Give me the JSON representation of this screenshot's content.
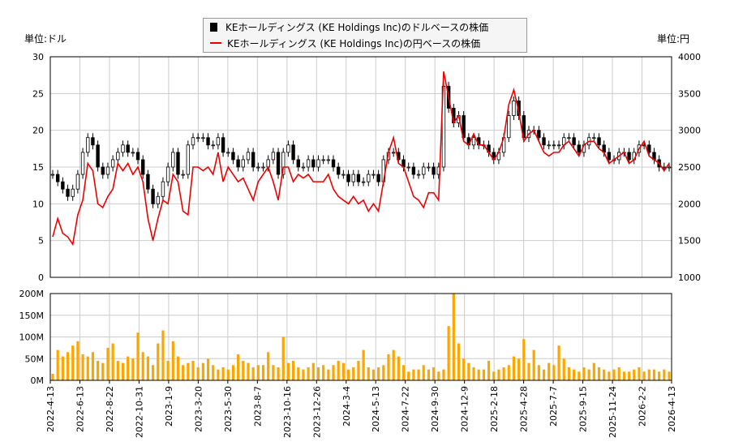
{
  "legend": {
    "usd_label": "KEホールディングス (KE Holdings Inc)のドルベースの株価",
    "jpy_label": "KEホールディングス (KE Holdings Inc)の円ベースの株価"
  },
  "units": {
    "left": "単位:ドル",
    "right": "単位:円"
  },
  "colors": {
    "usd_candle": "#000000",
    "jpy_line": "#ee0000",
    "volume": "#ffa500",
    "grid": "#cccccc"
  },
  "chart_data": [
    {
      "type": "candlestick+line",
      "frequency": "weekly",
      "period": [
        "2022-4-13",
        "2026-4-13"
      ],
      "left_axis": {
        "label": "単位:ドル",
        "ylim": [
          0,
          30
        ],
        "ticks": [
          "0",
          "5",
          "10",
          "15",
          "20",
          "25",
          "30"
        ]
      },
      "right_axis": {
        "label": "単位:円",
        "ylim": [
          1000,
          4000
        ],
        "ticks": [
          "1000",
          "1500",
          "2000",
          "2500",
          "3000",
          "3500",
          "4000"
        ]
      },
      "grid": true,
      "legend_placement": "top-center",
      "series": [
        {
          "name": "KEホールディングス (KE Holdings Inc)のドルベースの株価",
          "axis": "left",
          "close": [
            14,
            13,
            12,
            11,
            12,
            14,
            17,
            19,
            18,
            15,
            14,
            15,
            16,
            17,
            18,
            17,
            17,
            16,
            14,
            12,
            10,
            11,
            13,
            15,
            17,
            14,
            14,
            18,
            19,
            19,
            19,
            18,
            18,
            19,
            17,
            17,
            16,
            15,
            16,
            17,
            15,
            15,
            15,
            16,
            17,
            14,
            17,
            18,
            16,
            15,
            15,
            16,
            15,
            16,
            16,
            16,
            15,
            14,
            14,
            13,
            14,
            13,
            13,
            14,
            14,
            13,
            16,
            17,
            17,
            16,
            15,
            15,
            14,
            14,
            15,
            15,
            14,
            15,
            26,
            23,
            21,
            22,
            19,
            18,
            19,
            18,
            18,
            17,
            16,
            17,
            19,
            22,
            24,
            22,
            19,
            20,
            20,
            19,
            18,
            18,
            18,
            18,
            19,
            19,
            18,
            17,
            18,
            19,
            19,
            18,
            17,
            16,
            16,
            17,
            17,
            16,
            17,
            18,
            18,
            17,
            16,
            15,
            15,
            15
          ]
        },
        {
          "name": "KEホールディングス (KE Holdings Inc)の円ベースの株価",
          "axis": "right",
          "close": [
            1550,
            1800,
            1600,
            1550,
            1450,
            1850,
            2050,
            2550,
            2450,
            2000,
            1950,
            2100,
            2200,
            2550,
            2450,
            2550,
            2400,
            2500,
            2300,
            1800,
            1500,
            1800,
            2050,
            2000,
            2400,
            2300,
            1900,
            1850,
            2500,
            2500,
            2450,
            2500,
            2400,
            2700,
            2300,
            2500,
            2400,
            2300,
            2350,
            2200,
            2050,
            2300,
            2400,
            2500,
            2300,
            2050,
            2500,
            2500,
            2300,
            2400,
            2350,
            2400,
            2300,
            2300,
            2300,
            2400,
            2200,
            2100,
            2050,
            2000,
            2100,
            2000,
            2050,
            1900,
            2000,
            1900,
            2300,
            2700,
            2900,
            2550,
            2500,
            2300,
            2100,
            2050,
            1950,
            2150,
            2150,
            2050,
            3800,
            3450,
            3100,
            3200,
            2850,
            2800,
            2950,
            2800,
            2800,
            2700,
            2600,
            2700,
            2900,
            3350,
            3550,
            3250,
            2850,
            2950,
            3000,
            2850,
            2700,
            2650,
            2700,
            2700,
            2800,
            2850,
            2750,
            2650,
            2800,
            2850,
            2850,
            2750,
            2700,
            2550,
            2600,
            2650,
            2700,
            2550,
            2600,
            2750,
            2850,
            2650,
            2600,
            2550,
            2450,
            2550
          ]
        }
      ]
    },
    {
      "type": "bar",
      "frequency": "weekly",
      "ylim": [
        0,
        200
      ],
      "yticks": [
        "0M",
        "50M",
        "100M",
        "150M",
        "200M"
      ],
      "grid": true,
      "x_ticks": [
        "2022-4-13",
        "2022-6-13",
        "2022-8-22",
        "2022-10-31",
        "2023-1-9",
        "2023-3-20",
        "2023-5-30",
        "2023-8-7",
        "2023-10-16",
        "2023-12-26",
        "2024-3-4",
        "2024-5-13",
        "2024-7-22",
        "2024-9-30",
        "2024-12-9",
        "2025-2-18",
        "2025-4-28",
        "2025-7-7",
        "2025-9-15",
        "2025-11-24",
        "2026-2-2",
        "2026-4-13"
      ],
      "values_millions": [
        15,
        70,
        55,
        65,
        80,
        90,
        60,
        55,
        65,
        45,
        40,
        75,
        85,
        45,
        40,
        55,
        50,
        110,
        65,
        55,
        35,
        85,
        115,
        45,
        90,
        55,
        35,
        40,
        45,
        30,
        40,
        50,
        35,
        25,
        30,
        25,
        35,
        60,
        45,
        40,
        30,
        35,
        35,
        65,
        35,
        30,
        100,
        40,
        45,
        30,
        25,
        30,
        40,
        30,
        35,
        25,
        35,
        45,
        40,
        25,
        30,
        45,
        70,
        30,
        25,
        30,
        35,
        60,
        70,
        55,
        35,
        20,
        25,
        25,
        35,
        25,
        30,
        20,
        25,
        125,
        205,
        85,
        50,
        40,
        30,
        25,
        25,
        45,
        20,
        25,
        30,
        35,
        55,
        50,
        95,
        40,
        70,
        35,
        25,
        40,
        35,
        80,
        50,
        30,
        25,
        20,
        30,
        25,
        40,
        30,
        25,
        20,
        25,
        30,
        20,
        20,
        25,
        30,
        20,
        25,
        25,
        20,
        25,
        20,
        15
      ]
    }
  ]
}
